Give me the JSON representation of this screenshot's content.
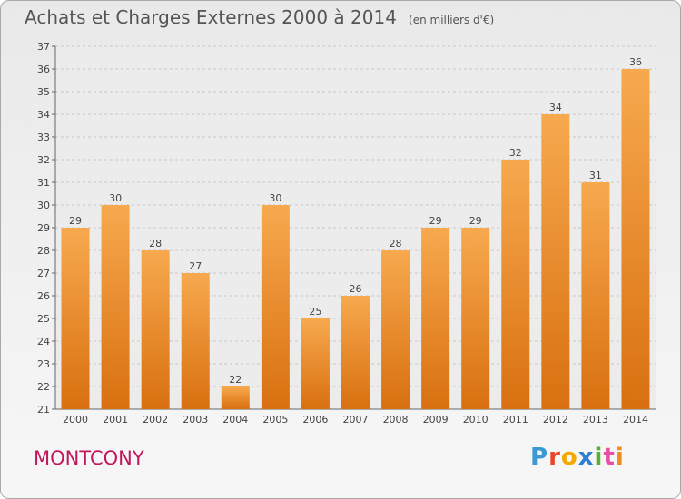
{
  "title": "Achats et Charges Externes 2000 à 2014",
  "subtitle": "(en milliers d'€)",
  "place": "MONTCONY",
  "logo": {
    "text": "Proxiti",
    "letter_colors": [
      "#3b9ad6",
      "#e8472a",
      "#f2a900",
      "#2e7fd1",
      "#5ab031",
      "#e84fa2",
      "#f28b1a"
    ]
  },
  "colors": {
    "bar_light": "#f7a94e",
    "bar_dark": "#d8700f",
    "grid": "#c8c8c8",
    "text": "#444444",
    "place": "#c2185b"
  },
  "chart_data": {
    "type": "bar",
    "categories": [
      "2000",
      "2001",
      "2002",
      "2003",
      "2004",
      "2005",
      "2006",
      "2007",
      "2008",
      "2009",
      "2010",
      "2011",
      "2012",
      "2013",
      "2014"
    ],
    "values": [
      29,
      30,
      28,
      27,
      22,
      30,
      25,
      26,
      28,
      29,
      29,
      32,
      34,
      31,
      36
    ],
    "ylim": [
      21,
      37
    ],
    "yticks": [
      21,
      22,
      23,
      24,
      25,
      26,
      27,
      28,
      29,
      30,
      31,
      32,
      33,
      34,
      35,
      36,
      37
    ],
    "grid": true,
    "data_labels": true
  }
}
